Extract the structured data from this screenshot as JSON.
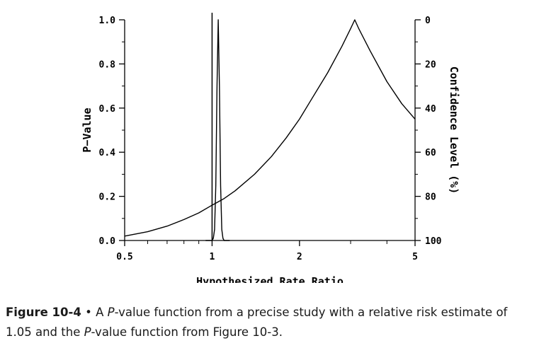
{
  "chart_data": {
    "type": "line",
    "xlabel": "Hypothesized Rate Ratio",
    "ylabel": "P−Value",
    "y2label": "Confidence Level (%)",
    "x_scale": "log",
    "xlim": [
      0.5,
      5
    ],
    "ylim": [
      0,
      1
    ],
    "x_ticks": [
      {
        "value": 0.5,
        "label": "0.5"
      },
      {
        "value": 1,
        "label": "1"
      },
      {
        "value": 2,
        "label": "2"
      },
      {
        "value": 5,
        "label": "5"
      }
    ],
    "y_ticks": [
      {
        "value": 0.0,
        "label": "0.0"
      },
      {
        "value": 0.2,
        "label": "0.2"
      },
      {
        "value": 0.4,
        "label": "0.4"
      },
      {
        "value": 0.6,
        "label": "0.6"
      },
      {
        "value": 0.8,
        "label": "0.8"
      },
      {
        "value": 1.0,
        "label": "1.0"
      }
    ],
    "y2_ticks": [
      {
        "value": 0,
        "label": "0"
      },
      {
        "value": 20,
        "label": "20"
      },
      {
        "value": 40,
        "label": "40"
      },
      {
        "value": 60,
        "label": "60"
      },
      {
        "value": 80,
        "label": "80"
      },
      {
        "value": 100,
        "label": "100"
      }
    ],
    "reference_line_x": 1,
    "grid": false,
    "series": [
      {
        "x": [
          0.5,
          0.6,
          0.7,
          0.8,
          0.9,
          1.0,
          1.1,
          1.2,
          1.4,
          1.6,
          1.8,
          2.0,
          2.2,
          2.5,
          2.8,
          3.0,
          3.1,
          3.2,
          3.5,
          4.0,
          4.5,
          5.0
        ],
        "y": [
          0.02,
          0.04,
          0.065,
          0.095,
          0.125,
          0.16,
          0.19,
          0.225,
          0.3,
          0.38,
          0.465,
          0.55,
          0.64,
          0.76,
          0.88,
          0.96,
          1.0,
          0.96,
          0.86,
          0.72,
          0.62,
          0.55
        ]
      },
      {
        "x": [
          0.95,
          0.98,
          1.0,
          1.01,
          1.02,
          1.03,
          1.04,
          1.05,
          1.06,
          1.07,
          1.08,
          1.09,
          1.1,
          1.12,
          1.15
        ],
        "y": [
          0.0,
          0.0,
          0.0,
          0.01,
          0.05,
          0.25,
          0.7,
          1.0,
          0.7,
          0.25,
          0.05,
          0.01,
          0.0,
          0.0,
          0.0
        ]
      }
    ]
  },
  "caption": {
    "lead": "Figure 10-4",
    "bullet": " • A ",
    "p1": "P",
    "t1": "-value function from a precise study with a relative risk estimate of 1.05 and the ",
    "p2": "P",
    "t2": "-value function from Figure 10-3."
  }
}
